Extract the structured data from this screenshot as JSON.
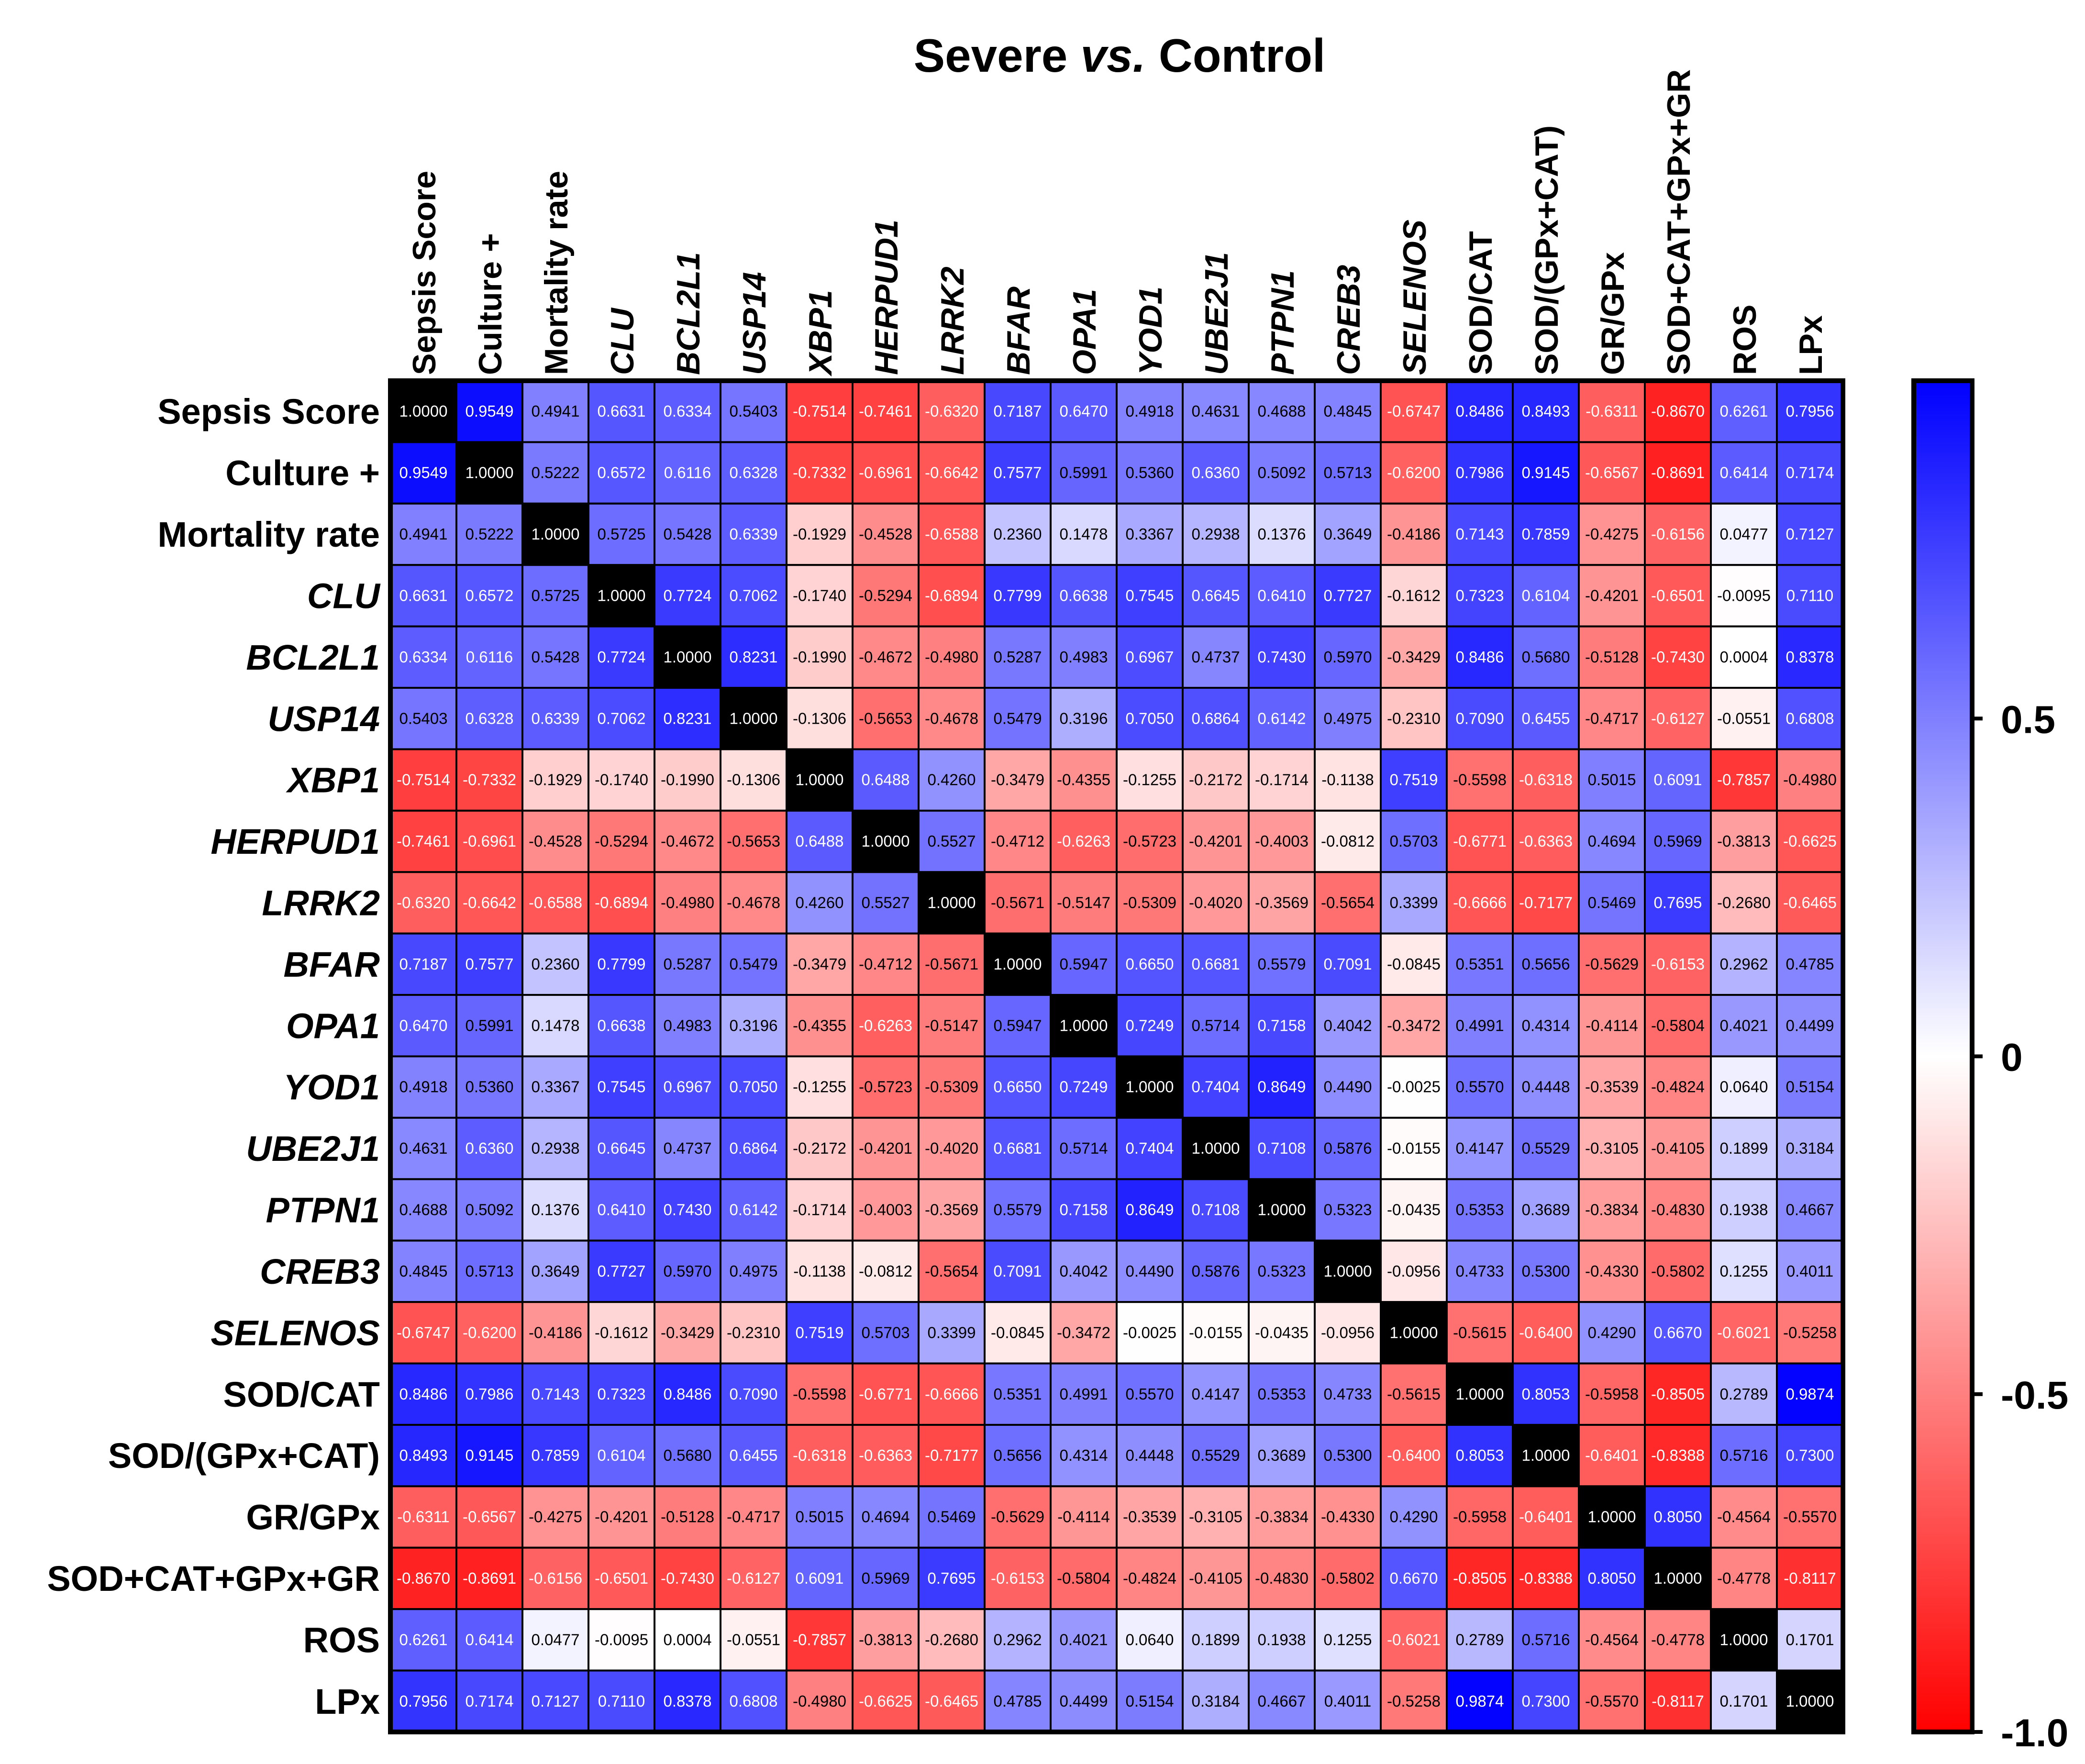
{
  "chart_data": {
    "type": "heatmap",
    "title_parts": [
      "Severe ",
      "vs.",
      " Control"
    ],
    "variables": [
      {
        "label": "Sepsis Score",
        "italic": false
      },
      {
        "label": "Culture +",
        "italic": false
      },
      {
        "label": "Mortality rate",
        "italic": false
      },
      {
        "label": "CLU",
        "italic": true
      },
      {
        "label": "BCL2L1",
        "italic": true
      },
      {
        "label": "USP14",
        "italic": true
      },
      {
        "label": "XBP1",
        "italic": true
      },
      {
        "label": "HERPUD1",
        "italic": true
      },
      {
        "label": "LRRK2",
        "italic": true
      },
      {
        "label": "BFAR",
        "italic": true
      },
      {
        "label": "OPA1",
        "italic": true
      },
      {
        "label": "YOD1",
        "italic": true
      },
      {
        "label": "UBE2J1",
        "italic": true
      },
      {
        "label": "PTPN1",
        "italic": true
      },
      {
        "label": "CREB3",
        "italic": true
      },
      {
        "label": "SELENOS",
        "italic": true
      },
      {
        "label": "SOD/CAT",
        "italic": false
      },
      {
        "label": "SOD/(GPx+CAT)",
        "italic": false
      },
      {
        "label": "GR/GPx",
        "italic": false
      },
      {
        "label": "SOD+CAT+GPx+GR",
        "italic": false
      },
      {
        "label": "ROS",
        "italic": false
      },
      {
        "label": "LPx",
        "italic": false
      }
    ],
    "matrix": [
      [
        1.0,
        0.9549,
        0.4941,
        0.6631,
        0.6334,
        0.5403,
        -0.7514,
        -0.7461,
        -0.632,
        0.7187,
        0.647,
        0.4918,
        0.4631,
        0.4688,
        0.4845,
        -0.6747,
        0.8486,
        0.8493,
        -0.6311,
        -0.867,
        0.6261,
        0.7956
      ],
      [
        0.9549,
        1.0,
        0.5222,
        0.6572,
        0.6116,
        0.6328,
        -0.7332,
        -0.6961,
        -0.6642,
        0.7577,
        0.5991,
        0.536,
        0.636,
        0.5092,
        0.5713,
        -0.62,
        0.7986,
        0.9145,
        -0.6567,
        -0.8691,
        0.6414,
        0.7174
      ],
      [
        0.4941,
        0.5222,
        1.0,
        0.5725,
        0.5428,
        0.6339,
        -0.1929,
        -0.4528,
        -0.6588,
        0.236,
        0.1478,
        0.3367,
        0.2938,
        0.1376,
        0.3649,
        -0.4186,
        0.7143,
        0.7859,
        -0.4275,
        -0.6156,
        0.0477,
        0.7127
      ],
      [
        0.6631,
        0.6572,
        0.5725,
        1.0,
        0.7724,
        0.7062,
        -0.174,
        -0.5294,
        -0.6894,
        0.7799,
        0.6638,
        0.7545,
        0.6645,
        0.641,
        0.7727,
        -0.1612,
        0.7323,
        0.6104,
        -0.4201,
        -0.6501,
        -0.0095,
        0.711
      ],
      [
        0.6334,
        0.6116,
        0.5428,
        0.7724,
        1.0,
        0.8231,
        -0.199,
        -0.4672,
        -0.498,
        0.5287,
        0.4983,
        0.6967,
        0.4737,
        0.743,
        0.597,
        -0.3429,
        0.8486,
        0.568,
        -0.5128,
        -0.743,
        0.0004,
        0.8378
      ],
      [
        0.5403,
        0.6328,
        0.6339,
        0.7062,
        0.8231,
        1.0,
        -0.1306,
        -0.5653,
        -0.4678,
        0.5479,
        0.3196,
        0.705,
        0.6864,
        0.6142,
        0.4975,
        -0.231,
        0.709,
        0.6455,
        -0.4717,
        -0.6127,
        -0.0551,
        0.6808
      ],
      [
        -0.7514,
        -0.7332,
        -0.1929,
        -0.174,
        -0.199,
        -0.1306,
        1.0,
        0.6488,
        0.426,
        -0.3479,
        -0.4355,
        -0.1255,
        -0.2172,
        -0.1714,
        -0.1138,
        0.7519,
        -0.5598,
        -0.6318,
        0.5015,
        0.6091,
        -0.7857,
        -0.498
      ],
      [
        -0.7461,
        -0.6961,
        -0.4528,
        -0.5294,
        -0.4672,
        -0.5653,
        0.6488,
        1.0,
        0.5527,
        -0.4712,
        -0.6263,
        -0.5723,
        -0.4201,
        -0.4003,
        -0.0812,
        0.5703,
        -0.6771,
        -0.6363,
        0.4694,
        0.5969,
        -0.3813,
        -0.6625
      ],
      [
        -0.632,
        -0.6642,
        -0.6588,
        -0.6894,
        -0.498,
        -0.4678,
        0.426,
        0.5527,
        1.0,
        -0.5671,
        -0.5147,
        -0.5309,
        -0.402,
        -0.3569,
        -0.5654,
        0.3399,
        -0.6666,
        -0.7177,
        0.5469,
        0.7695,
        -0.268,
        -0.6465
      ],
      [
        0.7187,
        0.7577,
        0.236,
        0.7799,
        0.5287,
        0.5479,
        -0.3479,
        -0.4712,
        -0.5671,
        1.0,
        0.5947,
        0.665,
        0.6681,
        0.5579,
        0.7091,
        -0.0845,
        0.5351,
        0.5656,
        -0.5629,
        -0.6153,
        0.2962,
        0.4785
      ],
      [
        0.647,
        0.5991,
        0.1478,
        0.6638,
        0.4983,
        0.3196,
        -0.4355,
        -0.6263,
        -0.5147,
        0.5947,
        1.0,
        0.7249,
        0.5714,
        0.7158,
        0.4042,
        -0.3472,
        0.4991,
        0.4314,
        -0.4114,
        -0.5804,
        0.4021,
        0.4499
      ],
      [
        0.4918,
        0.536,
        0.3367,
        0.7545,
        0.6967,
        0.705,
        -0.1255,
        -0.5723,
        -0.5309,
        0.665,
        0.7249,
        1.0,
        0.7404,
        0.8649,
        0.449,
        -0.0025,
        0.557,
        0.4448,
        -0.3539,
        -0.4824,
        0.064,
        0.5154
      ],
      [
        0.4631,
        0.636,
        0.2938,
        0.6645,
        0.4737,
        0.6864,
        -0.2172,
        -0.4201,
        -0.402,
        0.6681,
        0.5714,
        0.7404,
        1.0,
        0.7108,
        0.5876,
        -0.0155,
        0.4147,
        0.5529,
        -0.3105,
        -0.4105,
        0.1899,
        0.3184
      ],
      [
        0.4688,
        0.5092,
        0.1376,
        0.641,
        0.743,
        0.6142,
        -0.1714,
        -0.4003,
        -0.3569,
        0.5579,
        0.7158,
        0.8649,
        0.7108,
        1.0,
        0.5323,
        -0.0435,
        0.5353,
        0.3689,
        -0.3834,
        -0.483,
        0.1938,
        0.4667
      ],
      [
        0.4845,
        0.5713,
        0.3649,
        0.7727,
        0.597,
        0.4975,
        -0.1138,
        -0.0812,
        -0.5654,
        0.7091,
        0.4042,
        0.449,
        0.5876,
        0.5323,
        1.0,
        -0.0956,
        0.4733,
        0.53,
        -0.433,
        -0.5802,
        0.1255,
        0.4011
      ],
      [
        -0.6747,
        -0.62,
        -0.4186,
        -0.1612,
        -0.3429,
        -0.231,
        0.7519,
        0.5703,
        0.3399,
        -0.0845,
        -0.3472,
        -0.0025,
        -0.0155,
        -0.0435,
        -0.0956,
        1.0,
        -0.5615,
        -0.64,
        0.429,
        0.667,
        -0.6021,
        -0.5258
      ],
      [
        0.8486,
        0.7986,
        0.7143,
        0.7323,
        0.8486,
        0.709,
        -0.5598,
        -0.6771,
        -0.6666,
        0.5351,
        0.4991,
        0.557,
        0.4147,
        0.5353,
        0.4733,
        -0.5615,
        1.0,
        0.8053,
        -0.5958,
        -0.8505,
        0.2789,
        0.9874
      ],
      [
        0.8493,
        0.9145,
        0.7859,
        0.6104,
        0.568,
        0.6455,
        -0.6318,
        -0.6363,
        -0.7177,
        0.5656,
        0.4314,
        0.4448,
        0.5529,
        0.3689,
        0.53,
        -0.64,
        0.8053,
        1.0,
        -0.6401,
        -0.8388,
        0.5716,
        0.73
      ],
      [
        -0.6311,
        -0.6567,
        -0.4275,
        -0.4201,
        -0.5128,
        -0.4717,
        0.5015,
        0.4694,
        0.5469,
        -0.5629,
        -0.4114,
        -0.3539,
        -0.3105,
        -0.3834,
        -0.433,
        0.429,
        -0.5958,
        -0.6401,
        1.0,
        0.805,
        -0.4564,
        -0.557
      ],
      [
        -0.867,
        -0.8691,
        -0.6156,
        -0.6501,
        -0.743,
        -0.6127,
        0.6091,
        0.5969,
        0.7695,
        -0.6153,
        -0.5804,
        -0.4824,
        -0.4105,
        -0.483,
        -0.5802,
        0.667,
        -0.8505,
        -0.8388,
        0.805,
        1.0,
        -0.4778,
        -0.8117
      ],
      [
        0.6261,
        0.6414,
        0.0477,
        -0.0095,
        0.0004,
        -0.0551,
        -0.7857,
        -0.3813,
        -0.268,
        0.2962,
        0.4021,
        0.064,
        0.1899,
        0.1938,
        0.1255,
        -0.6021,
        0.2789,
        0.5716,
        -0.4564,
        -0.4778,
        1.0,
        0.1701
      ],
      [
        0.7956,
        0.7174,
        0.7127,
        0.711,
        0.8378,
        0.6808,
        -0.498,
        -0.6625,
        -0.6465,
        0.4785,
        0.4499,
        0.5154,
        0.3184,
        0.4667,
        0.4011,
        -0.5258,
        0.9874,
        0.73,
        -0.557,
        -0.8117,
        0.1701,
        1.0
      ]
    ],
    "color_scale": {
      "min": -1.0,
      "max": 1.0,
      "low_color": "#ff0000",
      "mid_color": "#ffffff",
      "high_color": "#0000ff",
      "diagonal_color": "#000000",
      "ticks": [
        {
          "value": 0.5,
          "label": "0.5"
        },
        {
          "value": 0,
          "label": "0"
        },
        {
          "value": -0.5,
          "label": "-0.5"
        },
        {
          "value": -1.0,
          "label": "-1.0"
        }
      ]
    }
  }
}
